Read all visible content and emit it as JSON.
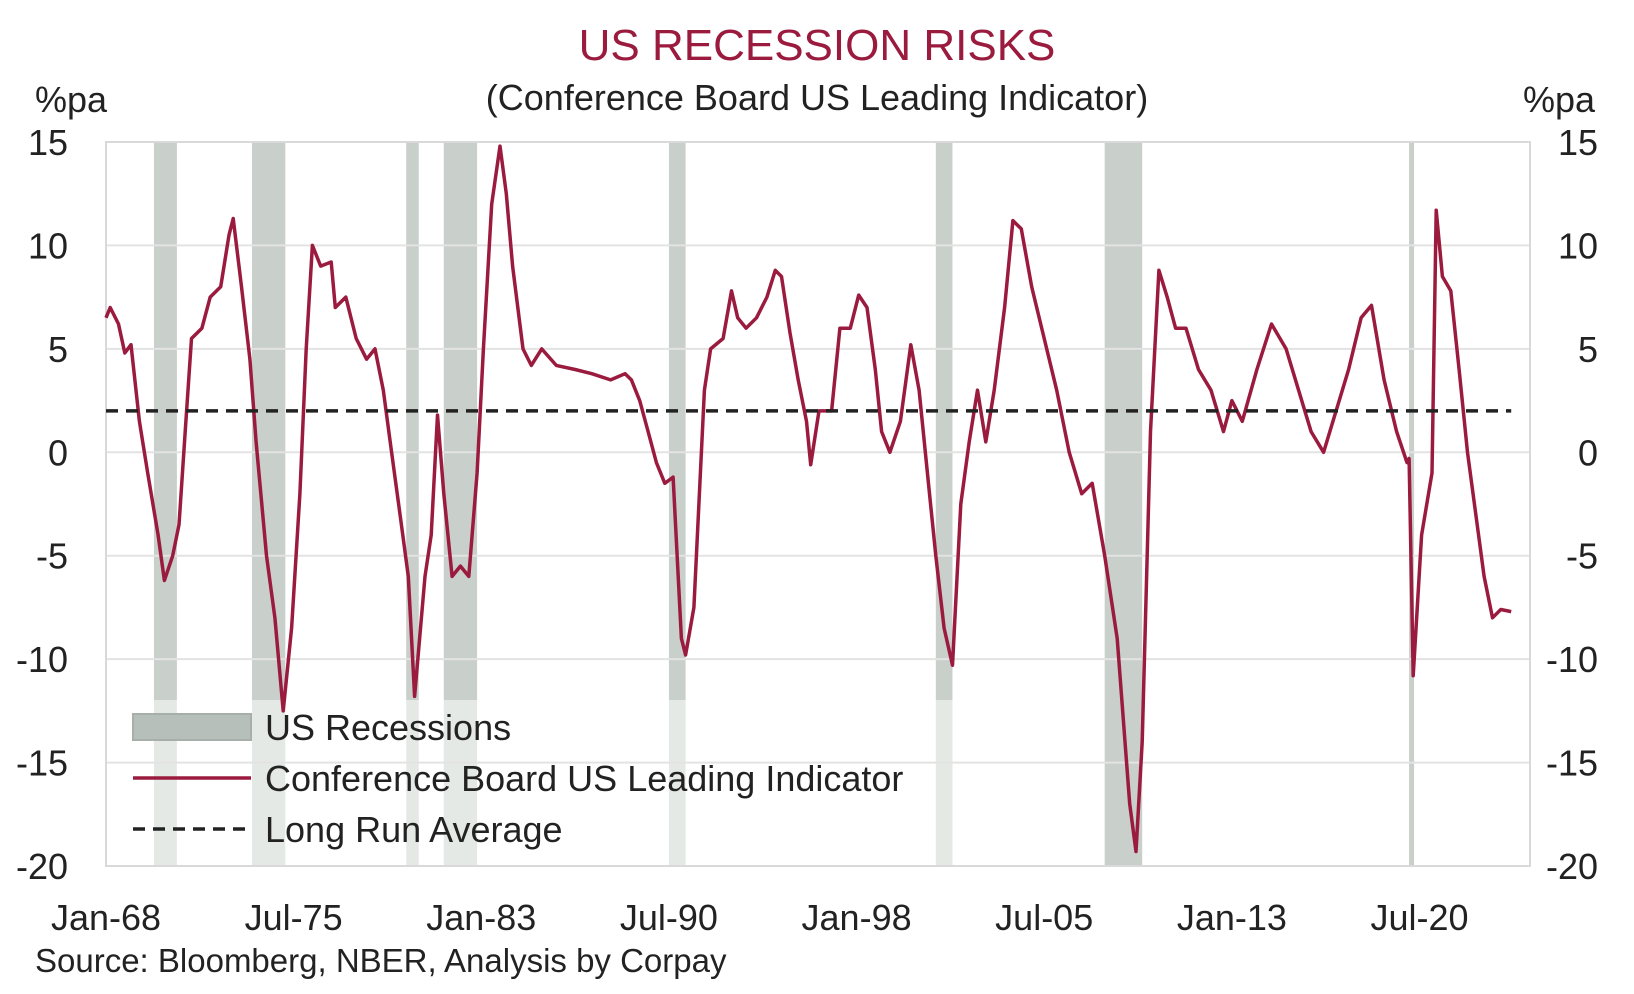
{
  "chart_data": {
    "type": "line",
    "title": "US RECESSION RISKS",
    "subtitle": "(Conference Board US Leading Indicator)",
    "ylabel_left": "%pa",
    "ylabel_right": "%pa",
    "ylim": [
      -20,
      15
    ],
    "yticks": [
      15,
      10,
      5,
      0,
      -5,
      -10,
      -15,
      -20
    ],
    "xlim": [
      "1968-01",
      "2024-12"
    ],
    "xticks": [
      {
        "label": "Jan-68",
        "x": "1968-01"
      },
      {
        "label": "Jul-75",
        "x": "1975-07"
      },
      {
        "label": "Jan-83",
        "x": "1983-01"
      },
      {
        "label": "Jul-90",
        "x": "1990-07"
      },
      {
        "label": "Jan-98",
        "x": "1998-01"
      },
      {
        "label": "Jul-05",
        "x": "2005-07"
      },
      {
        "label": "Jan-13",
        "x": "2013-01"
      },
      {
        "label": "Jul-20",
        "x": "2020-07"
      }
    ],
    "grid": true,
    "legend_position": "bottom-left",
    "recessions": [
      {
        "start": "1969-12",
        "end": "1970-11"
      },
      {
        "start": "1973-11",
        "end": "1975-03"
      },
      {
        "start": "1980-01",
        "end": "1980-07"
      },
      {
        "start": "1981-07",
        "end": "1982-11"
      },
      {
        "start": "1990-07",
        "end": "1991-03"
      },
      {
        "start": "2001-03",
        "end": "2001-11"
      },
      {
        "start": "2007-12",
        "end": "2009-06"
      },
      {
        "start": "2020-02",
        "end": "2020-04"
      }
    ],
    "series": [
      {
        "name": "Conference Board US Leading Indicator",
        "color": "#9b1b3f",
        "points": [
          [
            "1968-01",
            6.5
          ],
          [
            "1968-03",
            7.0
          ],
          [
            "1968-07",
            6.2
          ],
          [
            "1968-10",
            4.8
          ],
          [
            "1969-01",
            5.2
          ],
          [
            "1969-05",
            1.5
          ],
          [
            "1969-09",
            -1.0
          ],
          [
            "1970-02",
            -4.0
          ],
          [
            "1970-05",
            -6.2
          ],
          [
            "1970-09",
            -5.0
          ],
          [
            "1970-12",
            -3.5
          ],
          [
            "1971-03",
            1.0
          ],
          [
            "1971-06",
            5.5
          ],
          [
            "1971-11",
            6.0
          ],
          [
            "1972-03",
            7.5
          ],
          [
            "1972-08",
            8.0
          ],
          [
            "1972-12",
            10.5
          ],
          [
            "1973-02",
            11.3
          ],
          [
            "1973-06",
            8.0
          ],
          [
            "1973-10",
            4.5
          ],
          [
            "1974-01",
            0.5
          ],
          [
            "1974-06",
            -5.0
          ],
          [
            "1974-10",
            -8.0
          ],
          [
            "1975-02",
            -12.5
          ],
          [
            "1975-06",
            -8.5
          ],
          [
            "1975-10",
            -2.0
          ],
          [
            "1976-01",
            5.0
          ],
          [
            "1976-04",
            10.0
          ],
          [
            "1976-08",
            9.0
          ],
          [
            "1977-01",
            9.2
          ],
          [
            "1977-03",
            7.0
          ],
          [
            "1977-08",
            7.5
          ],
          [
            "1978-01",
            5.5
          ],
          [
            "1978-06",
            4.5
          ],
          [
            "1978-10",
            5.0
          ],
          [
            "1979-02",
            3.0
          ],
          [
            "1979-06",
            0.0
          ],
          [
            "1979-10",
            -3.0
          ],
          [
            "1980-02",
            -6.0
          ],
          [
            "1980-05",
            -11.8
          ],
          [
            "1980-10",
            -6.0
          ],
          [
            "1981-01",
            -4.0
          ],
          [
            "1981-04",
            1.8
          ],
          [
            "1981-07",
            -2.0
          ],
          [
            "1981-11",
            -6.0
          ],
          [
            "1982-03",
            -5.5
          ],
          [
            "1982-07",
            -6.0
          ],
          [
            "1982-11",
            -1.0
          ],
          [
            "1983-02",
            5.0
          ],
          [
            "1983-06",
            12.0
          ],
          [
            "1983-10",
            14.8
          ],
          [
            "1984-01",
            12.5
          ],
          [
            "1984-04",
            9.0
          ],
          [
            "1984-09",
            5.0
          ],
          [
            "1985-01",
            4.2
          ],
          [
            "1985-06",
            5.0
          ],
          [
            "1986-01",
            4.2
          ],
          [
            "1986-10",
            4.0
          ],
          [
            "1987-06",
            3.8
          ],
          [
            "1988-03",
            3.5
          ],
          [
            "1988-10",
            3.8
          ],
          [
            "1989-01",
            3.5
          ],
          [
            "1989-05",
            2.5
          ],
          [
            "1989-09",
            1.0
          ],
          [
            "1990-01",
            -0.5
          ],
          [
            "1990-05",
            -1.5
          ],
          [
            "1990-09",
            -1.2
          ],
          [
            "1991-01",
            -9.0
          ],
          [
            "1991-03",
            -9.8
          ],
          [
            "1991-07",
            -7.5
          ],
          [
            "1991-12",
            3.0
          ],
          [
            "1992-03",
            5.0
          ],
          [
            "1992-09",
            5.5
          ],
          [
            "1993-01",
            7.8
          ],
          [
            "1993-04",
            6.5
          ],
          [
            "1993-08",
            6.0
          ],
          [
            "1994-01",
            6.5
          ],
          [
            "1994-06",
            7.5
          ],
          [
            "1994-10",
            8.8
          ],
          [
            "1995-01",
            8.5
          ],
          [
            "1995-05",
            5.8
          ],
          [
            "1995-09",
            3.5
          ],
          [
            "1996-01",
            1.5
          ],
          [
            "1996-03",
            -0.6
          ],
          [
            "1996-07",
            2.0
          ],
          [
            "1997-01",
            2.0
          ],
          [
            "1997-05",
            6.0
          ],
          [
            "1997-10",
            6.0
          ],
          [
            "1998-02",
            7.6
          ],
          [
            "1998-06",
            7.0
          ],
          [
            "1998-10",
            4.0
          ],
          [
            "1999-01",
            1.0
          ],
          [
            "1999-05",
            0.0
          ],
          [
            "1999-10",
            1.5
          ],
          [
            "2000-03",
            5.2
          ],
          [
            "2000-07",
            3.0
          ],
          [
            "2000-12",
            -2.0
          ],
          [
            "2001-03",
            -5.0
          ],
          [
            "2001-07",
            -8.5
          ],
          [
            "2001-11",
            -10.3
          ],
          [
            "2002-03",
            -2.5
          ],
          [
            "2002-07",
            0.5
          ],
          [
            "2002-11",
            3.0
          ],
          [
            "2003-03",
            0.5
          ],
          [
            "2003-07",
            3.0
          ],
          [
            "2003-12",
            7.0
          ],
          [
            "2004-04",
            11.2
          ],
          [
            "2004-08",
            10.8
          ],
          [
            "2005-01",
            8.0
          ],
          [
            "2005-07",
            5.5
          ],
          [
            "2006-01",
            3.0
          ],
          [
            "2006-07",
            0.0
          ],
          [
            "2007-01",
            -2.0
          ],
          [
            "2007-06",
            -1.5
          ],
          [
            "2007-12",
            -5.0
          ],
          [
            "2008-06",
            -9.0
          ],
          [
            "2008-12",
            -17.0
          ],
          [
            "2009-03",
            -19.3
          ],
          [
            "2009-06",
            -14.0
          ],
          [
            "2009-10",
            1.0
          ],
          [
            "2010-02",
            8.8
          ],
          [
            "2010-06",
            7.5
          ],
          [
            "2010-10",
            6.0
          ],
          [
            "2011-03",
            6.0
          ],
          [
            "2011-09",
            4.0
          ],
          [
            "2012-03",
            3.0
          ],
          [
            "2012-09",
            1.0
          ],
          [
            "2013-01",
            2.5
          ],
          [
            "2013-06",
            1.5
          ],
          [
            "2014-01",
            4.0
          ],
          [
            "2014-08",
            6.2
          ],
          [
            "2015-03",
            5.0
          ],
          [
            "2015-09",
            3.0
          ],
          [
            "2016-03",
            1.0
          ],
          [
            "2016-09",
            0.0
          ],
          [
            "2017-03",
            2.0
          ],
          [
            "2017-09",
            4.0
          ],
          [
            "2018-03",
            6.5
          ],
          [
            "2018-08",
            7.1
          ],
          [
            "2019-02",
            3.5
          ],
          [
            "2019-08",
            1.0
          ],
          [
            "2020-01",
            -0.5
          ],
          [
            "2020-02",
            -0.3
          ],
          [
            "2020-04",
            -10.8
          ],
          [
            "2020-08",
            -4.0
          ],
          [
            "2021-01",
            -1.0
          ],
          [
            "2021-03",
            11.7
          ],
          [
            "2021-06",
            8.5
          ],
          [
            "2021-10",
            7.8
          ],
          [
            "2022-02",
            4.0
          ],
          [
            "2022-06",
            0.0
          ],
          [
            "2022-10",
            -3.0
          ],
          [
            "2023-02",
            -6.0
          ],
          [
            "2023-06",
            -8.0
          ],
          [
            "2023-10",
            -7.6
          ],
          [
            "2024-03",
            -7.7
          ]
        ]
      },
      {
        "name": "Long Run Average",
        "color": "#222222",
        "style": "dashed",
        "points": [
          [
            "1968-01",
            2.0
          ],
          [
            "2024-03",
            2.0
          ]
        ]
      }
    ],
    "legend": [
      {
        "label": "US Recessions",
        "kind": "box",
        "color": "#b7bfba"
      },
      {
        "label": "Conference Board US Leading Indicator",
        "kind": "line",
        "color": "#9b1b3f"
      },
      {
        "label": "Long Run Average",
        "kind": "dashed",
        "color": "#222222"
      }
    ],
    "source": "Source: Bloomberg, NBER, Analysis by Corpay"
  }
}
